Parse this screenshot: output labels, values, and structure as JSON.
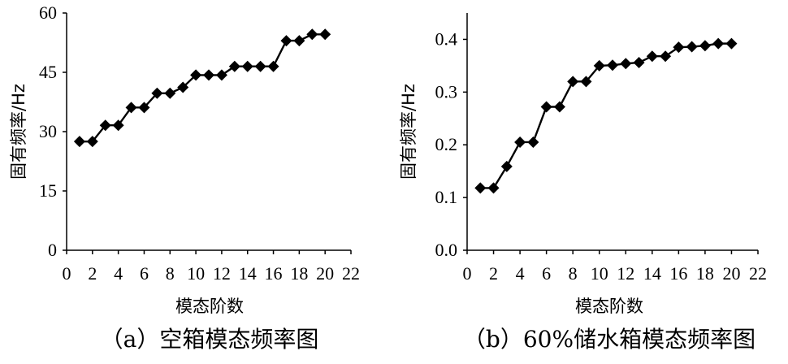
{
  "chart_data": [
    {
      "type": "line",
      "ylabel": "固有频率/Hz",
      "xlabel": "模态阶数",
      "caption": "（a）空箱模态频率图",
      "xlim": [
        0,
        22
      ],
      "ylim": [
        0,
        60
      ],
      "xticks": [
        "0",
        "2",
        "4",
        "6",
        "8",
        "10",
        "12",
        "14",
        "16",
        "18",
        "20",
        "22"
      ],
      "yticks": [
        "0",
        "15",
        "30",
        "45",
        "60"
      ],
      "grid": false,
      "series": [
        {
          "marker": "diamond",
          "x": [
            1,
            2,
            3,
            4,
            5,
            6,
            7,
            8,
            9,
            10,
            11,
            12,
            13,
            14,
            15,
            16,
            17,
            18,
            19,
            20
          ],
          "y": [
            27.5,
            27.5,
            31.6,
            31.6,
            36.1,
            36.1,
            39.7,
            39.7,
            41.2,
            44.3,
            44.3,
            44.3,
            46.5,
            46.5,
            46.5,
            46.5,
            53.0,
            53.0,
            54.6,
            54.6
          ]
        }
      ]
    },
    {
      "type": "line",
      "ylabel": "固有频率/Hz",
      "xlabel": "模态阶数",
      "caption": "（b）60%储水箱模态频率图",
      "xlim": [
        0,
        22
      ],
      "ylim": [
        0,
        0.45
      ],
      "xticks": [
        "0",
        "2",
        "4",
        "6",
        "8",
        "10",
        "12",
        "14",
        "16",
        "18",
        "20",
        "22"
      ],
      "yticks": [
        "0.0",
        "0.1",
        "0.2",
        "0.3",
        "0.4"
      ],
      "grid": false,
      "series": [
        {
          "marker": "diamond",
          "x": [
            1,
            2,
            3,
            4,
            5,
            6,
            7,
            8,
            9,
            10,
            11,
            12,
            13,
            14,
            15,
            16,
            17,
            18,
            19,
            20
          ],
          "y": [
            0.118,
            0.118,
            0.159,
            0.205,
            0.205,
            0.272,
            0.272,
            0.32,
            0.32,
            0.35,
            0.351,
            0.354,
            0.356,
            0.368,
            0.368,
            0.385,
            0.386,
            0.388,
            0.392,
            0.392
          ]
        }
      ]
    }
  ]
}
